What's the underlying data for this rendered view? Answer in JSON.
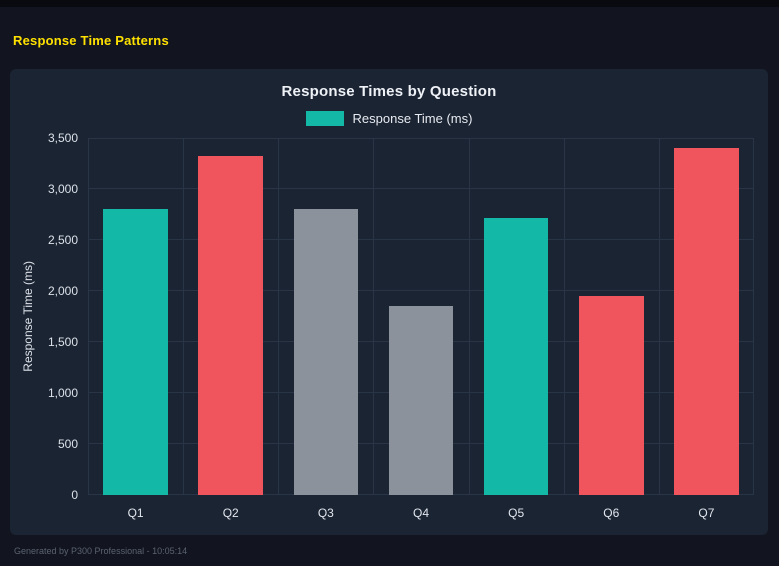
{
  "page": {
    "title": "Response Time Patterns",
    "title_color": "#FFE100"
  },
  "footer": {
    "text": "Generated by P300 Professional - 10:05:14"
  },
  "colors": {
    "background": "#12141F",
    "panel": "#1B2433",
    "grid": "#2A3447",
    "accent_yellow": "#FFE100",
    "teal": "#14B8A6",
    "red": "#F0545C",
    "gray": "#8C929C"
  },
  "chart_data": {
    "type": "bar",
    "title": "Response Times by Question",
    "legend": {
      "label": "Response Time (ms)",
      "swatch_color": "#14B8A6",
      "position": "top"
    },
    "xlabel": "",
    "ylabel": "Response Time (ms)",
    "ylim": [
      0,
      3500
    ],
    "grid": true,
    "yticks": [
      0,
      500,
      1000,
      1500,
      2000,
      2500,
      3000,
      3500
    ],
    "ytick_labels": [
      "0",
      "500",
      "1,000",
      "1,500",
      "2,000",
      "2,500",
      "3,000",
      "3,500"
    ],
    "categories": [
      "Q1",
      "Q2",
      "Q3",
      "Q4",
      "Q5",
      "Q6",
      "Q7"
    ],
    "values": [
      2800,
      3320,
      2800,
      1850,
      2720,
      1950,
      3400
    ],
    "bar_colors": [
      "#14B8A6",
      "#F0545C",
      "#8C929C",
      "#8C929C",
      "#14B8A6",
      "#F0545C",
      "#F0545C"
    ]
  }
}
